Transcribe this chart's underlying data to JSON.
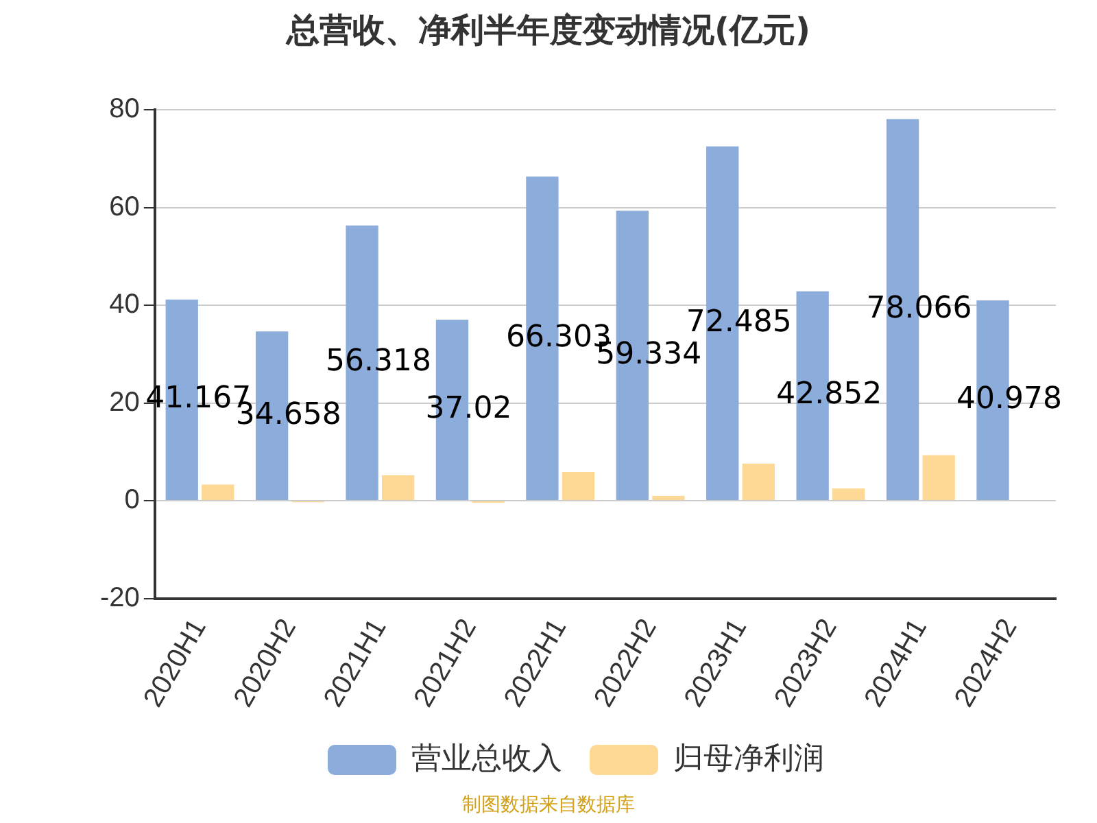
{
  "chart_data": {
    "type": "bar",
    "title": "总营收、净利半年度变动情况(亿元)",
    "categories": [
      "2020H1",
      "2020H2",
      "2021H1",
      "2021H2",
      "2022H1",
      "2022H2",
      "2023H1",
      "2023H2",
      "2024H1",
      "2024H2"
    ],
    "series": [
      {
        "name": "营业总收入",
        "color": "#8cacdb",
        "values": [
          41.167,
          34.658,
          56.318,
          37.02,
          66.303,
          59.334,
          72.485,
          42.852,
          78.066,
          40.978
        ],
        "value_labels": [
          "41.167",
          "34.658",
          "56.318",
          "37.02",
          "66.303",
          "59.334",
          "72.485",
          "42.852",
          "78.066",
          "40.978"
        ]
      },
      {
        "name": "归母净利润",
        "color": "#fed895",
        "values": [
          3.3,
          -0.3,
          5.2,
          -0.4,
          5.9,
          1.0,
          7.6,
          2.5,
          9.3,
          null
        ]
      }
    ],
    "ylim": [
      -20,
      80
    ],
    "yticks": [
      -20,
      0,
      20,
      40,
      60,
      80
    ],
    "grid": "y",
    "legend": "bottom",
    "annotations": [
      "制图数据来自数据库"
    ]
  }
}
